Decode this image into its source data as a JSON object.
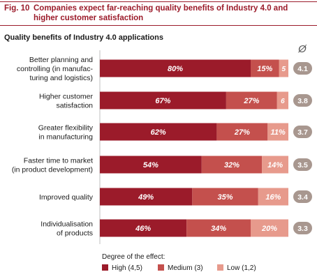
{
  "figure": {
    "number": "Fig. 10",
    "title": "Companies expect far-reaching quality benefits of Industry 4.0 and higher customer satisfaction"
  },
  "colors": {
    "high": "#9b1b2a",
    "medium": "#c4504d",
    "low": "#e79a8c",
    "average_badge": "#a8978f",
    "accent": "#9b1b2a"
  },
  "chart_data": {
    "type": "bar",
    "orientation": "horizontal",
    "stacked": true,
    "title": "Quality benefits of Industry 4.0 applications",
    "categories": [
      [
        "Better planning and",
        "controlling (in manufac-",
        "turing and logistics)"
      ],
      [
        "Higher customer",
        "satisfaction"
      ],
      [
        "Greater flexibility",
        "in manufacturing"
      ],
      [
        "Faster time to market",
        "(in product development)"
      ],
      [
        "Improved quality"
      ],
      [
        "Individualisation",
        "of products"
      ]
    ],
    "series": [
      {
        "name": "High (4,5)",
        "values": [
          80,
          67,
          62,
          54,
          49,
          46
        ],
        "labels": [
          "80%",
          "67%",
          "62%",
          "54%",
          "49%",
          "46%"
        ]
      },
      {
        "name": "Medium (3)",
        "values": [
          15,
          27,
          27,
          32,
          35,
          34
        ],
        "labels": [
          "15%",
          "27%",
          "27%",
          "32%",
          "35%",
          "34%"
        ]
      },
      {
        "name": "Low (1,2)",
        "values": [
          5,
          6,
          11,
          14,
          16,
          20
        ],
        "labels": [
          "5",
          "6",
          "11%",
          "14%",
          "16%",
          "20%"
        ]
      }
    ],
    "average_header": "Ø",
    "averages": [
      "4.1",
      "3.8",
      "3.7",
      "3.5",
      "3.4",
      "3.3"
    ],
    "xlim": [
      0,
      100
    ],
    "legend_title": "Degree of the effect:",
    "legend_position": "bottom"
  }
}
